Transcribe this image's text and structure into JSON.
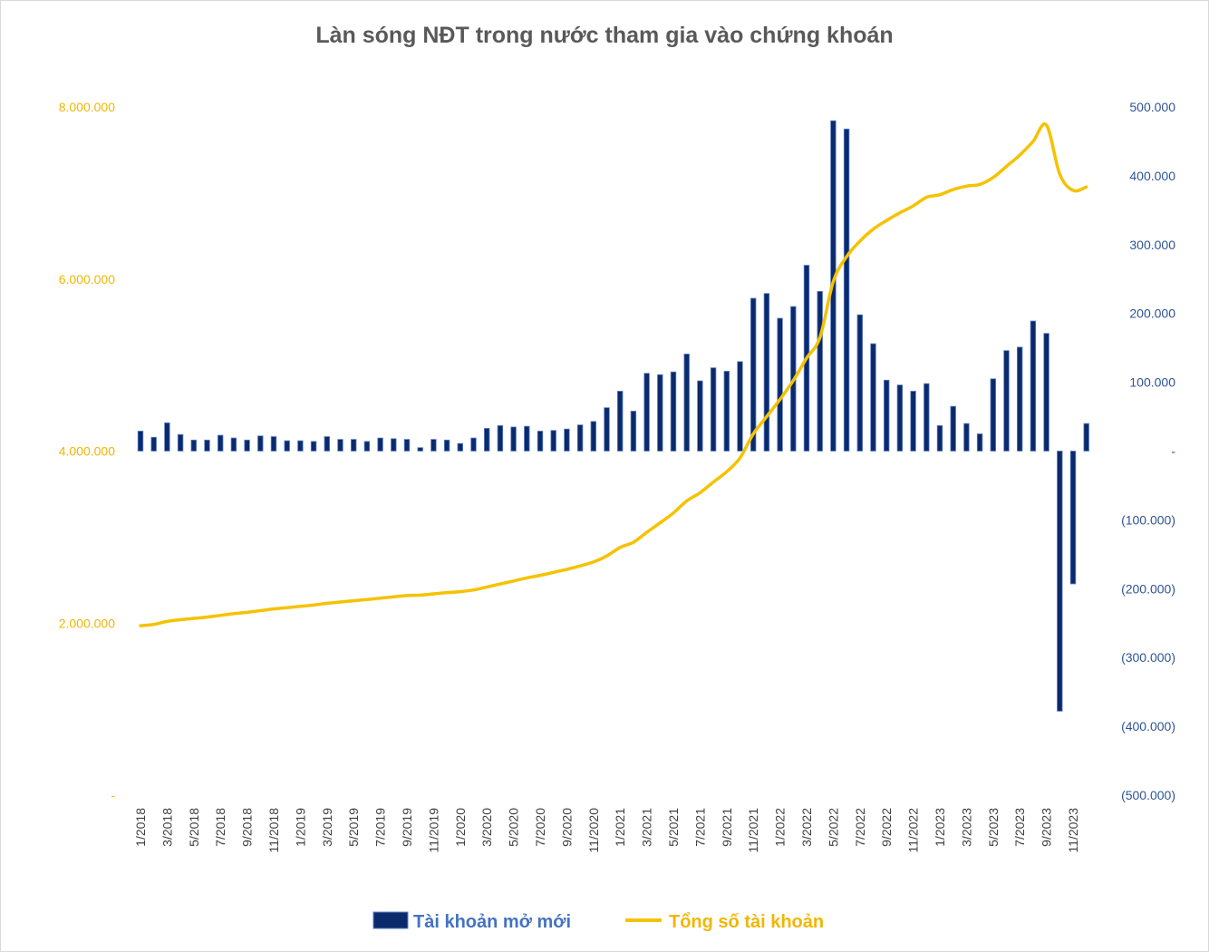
{
  "chart_data": {
    "type": "bar+line",
    "title": "Làn sóng NĐT trong nước tham gia vào chứng khoán",
    "colors": {
      "bar_fill": "#0b2a6b",
      "bar_outline": "#5b7fc7",
      "line": "#f5c200",
      "left_axis": "#f2b600",
      "right_axis": "#2f5597"
    },
    "left_axis": {
      "ylim": [
        0,
        8000000
      ],
      "ticks": [
        0,
        2000000,
        4000000,
        6000000,
        8000000
      ],
      "tick_labels": [
        "-",
        "2.000.000",
        "4.000.000",
        "6.000.000",
        "8.000.000"
      ]
    },
    "right_axis": {
      "ylim": [
        -500000,
        500000
      ],
      "ticks": [
        500000,
        400000,
        300000,
        200000,
        100000,
        0,
        -100000,
        -200000,
        -300000,
        -400000,
        -500000
      ],
      "tick_labels": [
        "500.000",
        "400.000",
        "300.000",
        "200.000",
        "100.000",
        "-",
        "(100.000)",
        "(200.000)",
        "(300.000)",
        "(400.000)",
        "(500.000)"
      ]
    },
    "x_tick_labels": [
      "1/2018",
      "3/2018",
      "5/2018",
      "7/2018",
      "9/2018",
      "11/2018",
      "1/2019",
      "3/2019",
      "5/2019",
      "7/2019",
      "9/2019",
      "11/2019",
      "1/2020",
      "3/2020",
      "5/2020",
      "7/2020",
      "9/2020",
      "11/2020",
      "1/2021",
      "3/2021",
      "5/2021",
      "7/2021",
      "9/2021",
      "11/2021",
      "1/2022",
      "3/2022",
      "5/2022",
      "7/2022",
      "9/2022",
      "11/2022",
      "1/2023",
      "3/2023",
      "5/2023",
      "7/2023",
      "9/2023",
      "11/2023"
    ],
    "months": [
      "1/2018",
      "2/2018",
      "3/2018",
      "4/2018",
      "5/2018",
      "6/2018",
      "7/2018",
      "8/2018",
      "9/2018",
      "10/2018",
      "11/2018",
      "12/2018",
      "1/2019",
      "2/2019",
      "3/2019",
      "4/2019",
      "5/2019",
      "6/2019",
      "7/2019",
      "8/2019",
      "9/2019",
      "10/2019",
      "11/2019",
      "12/2019",
      "1/2020",
      "2/2020",
      "3/2020",
      "4/2020",
      "5/2020",
      "6/2020",
      "7/2020",
      "8/2020",
      "9/2020",
      "10/2020",
      "11/2020",
      "12/2020",
      "1/2021",
      "2/2021",
      "3/2021",
      "4/2021",
      "5/2021",
      "6/2021",
      "7/2021",
      "8/2021",
      "9/2021",
      "10/2021",
      "11/2021",
      "12/2021",
      "1/2022",
      "2/2022",
      "3/2022",
      "4/2022",
      "5/2022",
      "6/2022",
      "7/2022",
      "8/2022",
      "9/2022",
      "10/2022",
      "11/2022",
      "12/2022",
      "1/2023",
      "2/2023",
      "3/2023",
      "4/2023",
      "5/2023",
      "6/2023",
      "7/2023",
      "8/2023",
      "9/2023",
      "10/2023",
      "11/2023",
      "12/2023"
    ],
    "series": [
      {
        "name": "Tài khoản mở mới",
        "type": "bar",
        "axis": "right",
        "values": [
          29000,
          20000,
          41000,
          24000,
          16000,
          16000,
          23000,
          19000,
          16000,
          22000,
          21000,
          15000,
          15000,
          14000,
          21000,
          17000,
          17000,
          14000,
          19000,
          18000,
          17000,
          5000,
          17000,
          16000,
          11000,
          19000,
          33000,
          37000,
          35000,
          36000,
          29000,
          30000,
          32000,
          38000,
          43000,
          63000,
          87000,
          58000,
          113000,
          111000,
          115000,
          141000,
          102000,
          121000,
          116000,
          130000,
          222000,
          229000,
          193000,
          210000,
          270000,
          232000,
          480000,
          468000,
          198000,
          156000,
          103000,
          96000,
          87000,
          98000,
          37000,
          65000,
          40000,
          25000,
          105000,
          146000,
          151000,
          189000,
          171000,
          -378000,
          -193000,
          40000
        ]
      },
      {
        "name": "Tổng số tài khoản",
        "type": "line",
        "axis": "left",
        "values": [
          1970000,
          1985000,
          2020000,
          2040000,
          2055000,
          2070000,
          2090000,
          2110000,
          2125000,
          2145000,
          2165000,
          2180000,
          2195000,
          2210000,
          2230000,
          2245000,
          2260000,
          2275000,
          2290000,
          2305000,
          2320000,
          2325000,
          2340000,
          2355000,
          2365000,
          2385000,
          2420000,
          2455000,
          2490000,
          2525000,
          2555000,
          2590000,
          2625000,
          2665000,
          2710000,
          2780000,
          2880000,
          2940000,
          3055000,
          3165000,
          3280000,
          3420000,
          3515000,
          3640000,
          3760000,
          3920000,
          4200000,
          4400000,
          4600000,
          4820000,
          5080000,
          5320000,
          5970000,
          6260000,
          6440000,
          6580000,
          6680000,
          6770000,
          6850000,
          6950000,
          6980000,
          7040000,
          7080000,
          7100000,
          7180000,
          7310000,
          7440000,
          7600000,
          7790000,
          7220000,
          7030000,
          7070000
        ]
      }
    ],
    "legend": {
      "position": "bottom",
      "entries": [
        "Tài khoản mở mới",
        "Tổng số tài khoản"
      ]
    }
  }
}
